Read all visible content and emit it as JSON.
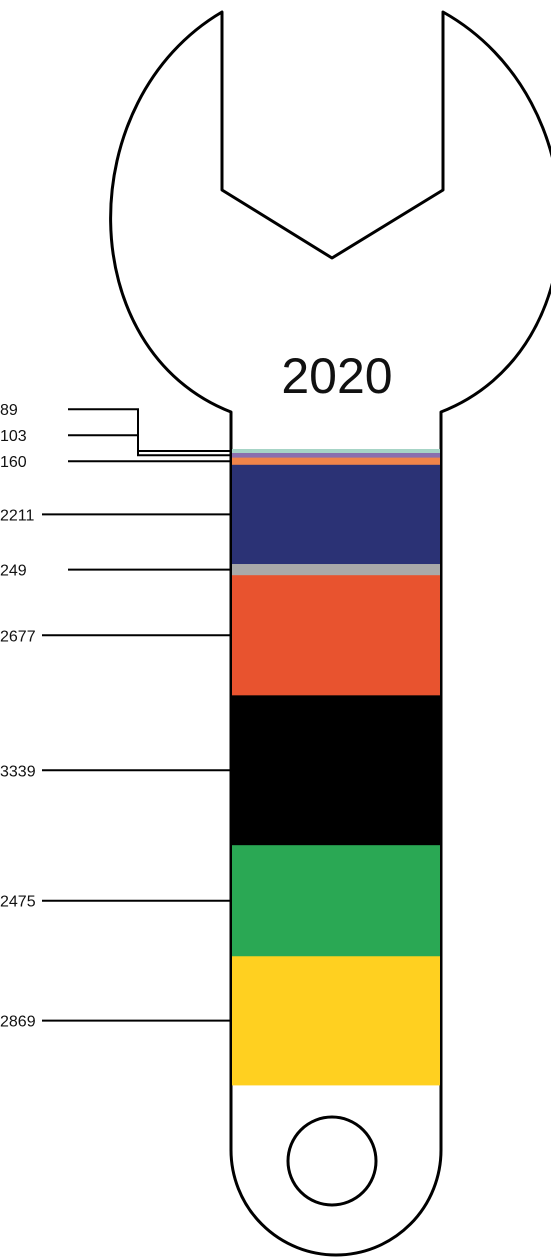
{
  "chart_data": {
    "type": "bar",
    "title": "2020",
    "stacked": true,
    "orientation": "vertical",
    "segments": [
      {
        "value": 89,
        "color": "#a6d4c6"
      },
      {
        "value": 103,
        "color": "#8a6fae"
      },
      {
        "value": 160,
        "color": "#f0844a"
      },
      {
        "value": 2211,
        "color": "#2b3275"
      },
      {
        "value": 249,
        "color": "#a9a9a9"
      },
      {
        "value": 2677,
        "color": "#e8532f"
      },
      {
        "value": 3339,
        "color": "#000000"
      },
      {
        "value": 2475,
        "color": "#2aa854"
      },
      {
        "value": 2869,
        "color": "#ffd020"
      }
    ]
  }
}
